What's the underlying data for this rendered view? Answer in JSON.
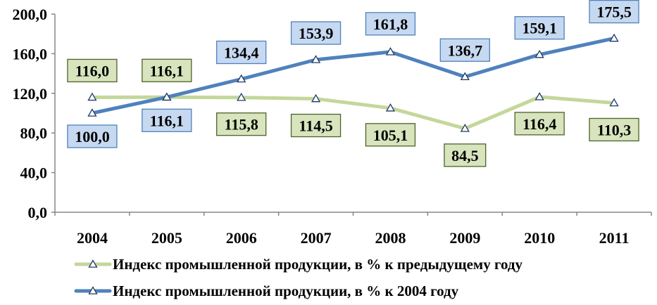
{
  "chart_data": {
    "type": "line",
    "categories": [
      "2004",
      "2005",
      "2006",
      "2007",
      "2008",
      "2009",
      "2010",
      "2011"
    ],
    "ylim": [
      0,
      200
    ],
    "yticks": [
      "0,0",
      "40,0",
      "80,0",
      "120,0",
      "160,0",
      "200,0"
    ],
    "ytick_values": [
      0,
      40,
      80,
      120,
      160,
      200
    ],
    "grid": false,
    "legend_position": "bottom",
    "series": [
      {
        "name": "Индекс промышленной продукции, в % к предыдущему году",
        "color": "#C4D79B",
        "label_fill": "#D7E4BD",
        "label_border": "#4F6228",
        "marker": "triangle",
        "values": [
          116.0,
          116.1,
          115.8,
          114.5,
          105.1,
          84.5,
          116.4,
          110.3
        ],
        "labels": [
          "116,0",
          "116,1",
          "115,8",
          "114,5",
          "105,1",
          "84,5",
          "116,4",
          "110,3"
        ]
      },
      {
        "name": "Индекс промышленной продукции, в % к 2004 году",
        "color": "#4F81BD",
        "label_fill": "#C6D9F1",
        "label_border": "#4F81BD",
        "marker": "triangle",
        "values": [
          100.0,
          116.1,
          134.4,
          153.9,
          161.8,
          136.7,
          159.1,
          175.5
        ],
        "labels": [
          "100,0",
          "116,1",
          "134,4",
          "153,9",
          "161,8",
          "136,7",
          "159,1",
          "175,5"
        ]
      }
    ]
  }
}
